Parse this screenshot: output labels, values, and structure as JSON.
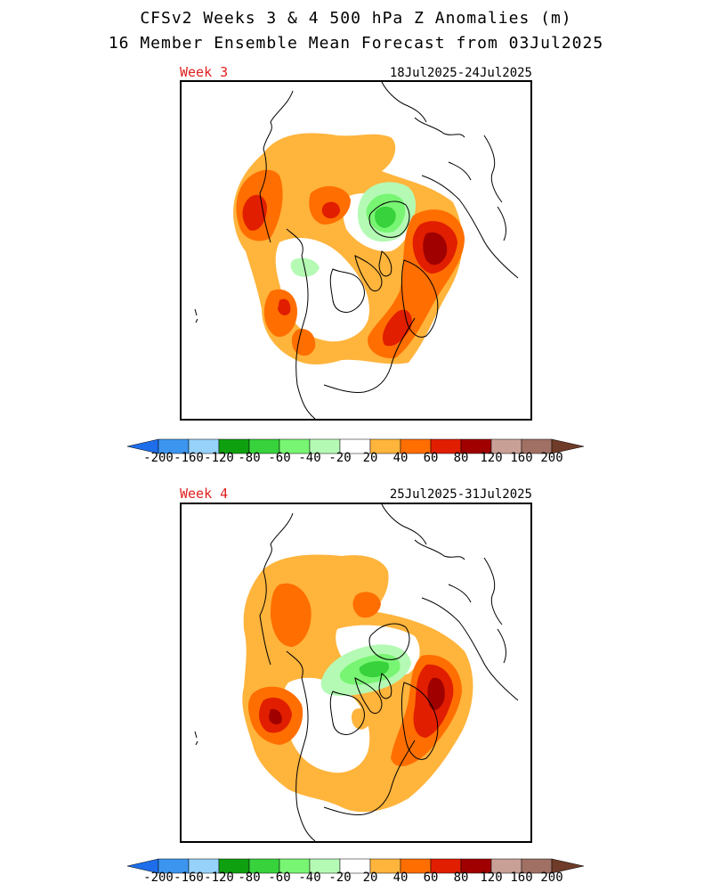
{
  "title_line1": "CFSv2 Weeks 3 & 4 500 hPa Z Anomalies (m)",
  "title_line2": "16 Member Ensemble Mean Forecast from 03Jul2025",
  "panels": [
    {
      "week_label": "Week 3",
      "date_range": "18Jul2025-24Jul2025"
    },
    {
      "week_label": "Week 4",
      "date_range": "25Jul2025-31Jul2025"
    }
  ],
  "colorbar": {
    "tick_labels": [
      "-200",
      "-160",
      "-120",
      "-80",
      "-60",
      "-40",
      "-20",
      "20",
      "40",
      "60",
      "80",
      "120",
      "160",
      "200"
    ],
    "colors": [
      "#1e6eeb",
      "#3c96f0",
      "#96d2fa",
      "#0fa00f",
      "#37d23c",
      "#78f573",
      "#b4fab4",
      "#ffffff",
      "#ffb43c",
      "#ff6e00",
      "#e11e00",
      "#a00000",
      "#c8a096",
      "#a07064",
      "#6e3c28"
    ]
  },
  "colors": {
    "week_label": "#e0201f",
    "anomaly_20": "#ffb43c",
    "anomaly_40": "#ff6e00",
    "anomaly_60": "#e11e00",
    "anomaly_80": "#a00000",
    "anomaly_neg20": "#b4fab4",
    "anomaly_neg40": "#78f573",
    "anomaly_neg60": "#37d23c"
  }
}
